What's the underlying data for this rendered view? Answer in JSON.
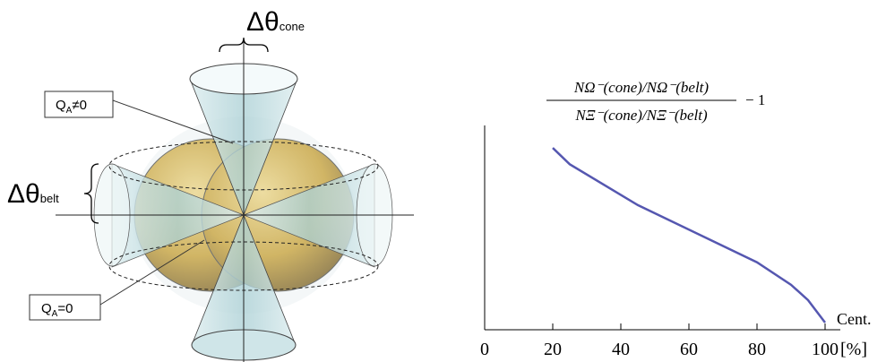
{
  "diagram": {
    "cone_symbol": "Δθ",
    "cone_subscript": "cone",
    "belt_symbol": "Δθ",
    "belt_subscript": "belt",
    "box_top": "Q",
    "box_top_sub": "A",
    "box_top_rel": "≠0",
    "box_bottom": "Q",
    "box_bottom_sub": "A",
    "box_bottom_rel": "=0"
  },
  "chart_data": {
    "type": "line",
    "title_numerator": "NΩ⁻(cone)/NΩ⁻(belt)",
    "title_denominator": "NΞ⁻(cone)/NΞ⁻(belt)",
    "title_suffix": "− 1",
    "xlabel": "Cent.",
    "x_unit": "[%]",
    "x": [
      20,
      25,
      45,
      65,
      80,
      90,
      95,
      100
    ],
    "series": [
      {
        "color": "#5557b0",
        "values": [
          0.89,
          0.81,
          0.61,
          0.45,
          0.33,
          0.22,
          0.145,
          0.035
        ]
      }
    ],
    "xlim": [
      0,
      100
    ],
    "xticks": [
      0,
      20,
      40,
      60,
      80,
      100
    ],
    "ylim": [
      0,
      1
    ]
  }
}
